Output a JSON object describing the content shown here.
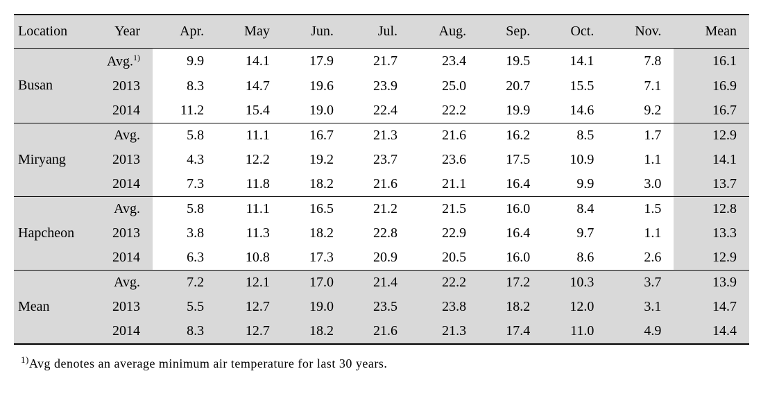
{
  "columns": {
    "location": "Location",
    "year": "Year",
    "months": [
      "Apr.",
      "May",
      "Jun.",
      "Jul.",
      "Aug.",
      "Sep.",
      "Oct.",
      "Nov."
    ],
    "mean": "Mean"
  },
  "groups": [
    {
      "location": "Busan",
      "rows": [
        {
          "year": "Avg.",
          "year_sup": "1)",
          "vals": [
            "9.9",
            "14.1",
            "17.9",
            "21.7",
            "23.4",
            "19.5",
            "14.1",
            "7.8"
          ],
          "mean": "16.1"
        },
        {
          "year": "2013",
          "vals": [
            "8.3",
            "14.7",
            "19.6",
            "23.9",
            "25.0",
            "20.7",
            "15.5",
            "7.1"
          ],
          "mean": "16.9"
        },
        {
          "year": "2014",
          "vals": [
            "11.2",
            "15.4",
            "19.0",
            "22.4",
            "22.2",
            "19.9",
            "14.6",
            "9.2"
          ],
          "mean": "16.7"
        }
      ]
    },
    {
      "location": "Miryang",
      "rows": [
        {
          "year": "Avg.",
          "vals": [
            "5.8",
            "11.1",
            "16.7",
            "21.3",
            "21.6",
            "16.2",
            "8.5",
            "1.7"
          ],
          "mean": "12.9"
        },
        {
          "year": "2013",
          "vals": [
            "4.3",
            "12.2",
            "19.2",
            "23.7",
            "23.6",
            "17.5",
            "10.9",
            "1.1"
          ],
          "mean": "14.1"
        },
        {
          "year": "2014",
          "vals": [
            "7.3",
            "11.8",
            "18.2",
            "21.6",
            "21.1",
            "16.4",
            "9.9",
            "3.0"
          ],
          "mean": "13.7"
        }
      ]
    },
    {
      "location": "Hapcheon",
      "rows": [
        {
          "year": "Avg.",
          "vals": [
            "5.8",
            "11.1",
            "16.5",
            "21.2",
            "21.5",
            "16.0",
            "8.4",
            "1.5"
          ],
          "mean": "12.8"
        },
        {
          "year": "2013",
          "vals": [
            "3.8",
            "11.3",
            "18.2",
            "22.8",
            "22.9",
            "16.4",
            "9.7",
            "1.1"
          ],
          "mean": "13.3"
        },
        {
          "year": "2014",
          "vals": [
            "6.3",
            "10.8",
            "17.3",
            "20.9",
            "20.5",
            "16.0",
            "8.6",
            "2.6"
          ],
          "mean": "12.9"
        }
      ]
    },
    {
      "location": "Mean",
      "shaded": true,
      "rows": [
        {
          "year": "Avg.",
          "vals": [
            "7.2",
            "12.1",
            "17.0",
            "21.4",
            "22.2",
            "17.2",
            "10.3",
            "3.7"
          ],
          "mean": "13.9"
        },
        {
          "year": "2013",
          "vals": [
            "5.5",
            "12.7",
            "19.0",
            "23.5",
            "23.8",
            "18.2",
            "12.0",
            "3.1"
          ],
          "mean": "14.7"
        },
        {
          "year": "2014",
          "vals": [
            "8.3",
            "12.7",
            "18.2",
            "21.6",
            "21.3",
            "17.4",
            "11.0",
            "4.9"
          ],
          "mean": "14.4"
        }
      ]
    }
  ],
  "footnote": {
    "sup": "1)",
    "text": "Avg denotes an average minimum air temperature for last 30 years."
  },
  "style": {
    "header_bg": "#d9d9d9",
    "body_bg": "#ffffff",
    "font_family": "Times New Roman",
    "table_border_color": "#000000",
    "table_top_border_width": 2.5,
    "group_border_width": 1,
    "header_font_size": 20,
    "body_font_size": 20,
    "footnote_font_size": 18
  }
}
